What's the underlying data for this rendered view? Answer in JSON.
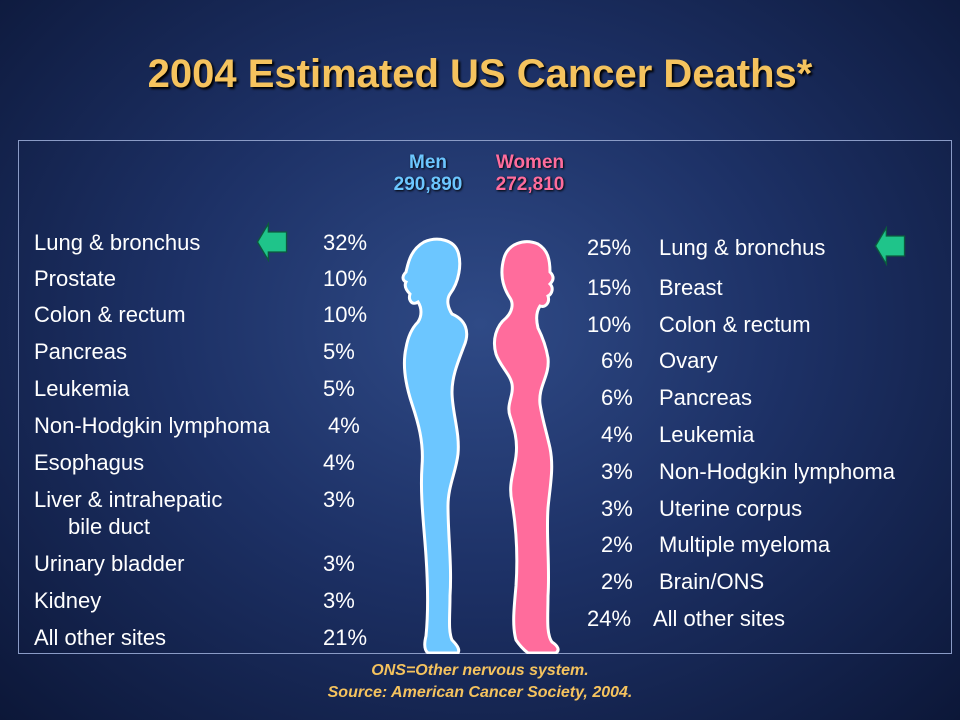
{
  "title": "2004 Estimated US Cancer Deaths*",
  "men": {
    "label": "Men",
    "total": "290,890"
  },
  "women": {
    "label": "Women",
    "total": "272,810"
  },
  "men_sites": [
    {
      "site": "Lung & bronchus",
      "pct": "32%",
      "highlight": true
    },
    {
      "site": "Prostate",
      "pct": "10%"
    },
    {
      "site": "Colon & rectum",
      "pct": "10%"
    },
    {
      "site": "Pancreas",
      "pct": "5%"
    },
    {
      "site": "Leukemia",
      "pct": "5%"
    },
    {
      "site": "Non-Hodgkin lymphoma",
      "pct": "4%"
    },
    {
      "site": "Esophagus",
      "pct": "4%"
    },
    {
      "site": "Liver & intrahepatic",
      "site_line2": "bile duct",
      "pct": "3%"
    },
    {
      "site": "Urinary bladder",
      "pct": "3%"
    },
    {
      "site": "Kidney",
      "pct": "3%"
    },
    {
      "site": "All other sites",
      "pct": "21%"
    }
  ],
  "women_sites": [
    {
      "pct": "25%",
      "site": "Lung & bronchus",
      "highlight": true
    },
    {
      "pct": "15%",
      "site": "Breast"
    },
    {
      "pct": "10%",
      "site": "Colon & rectum"
    },
    {
      "pct": "6%",
      "site": "Ovary"
    },
    {
      "pct": "6%",
      "site": "Pancreas"
    },
    {
      "pct": "4%",
      "site": "Leukemia"
    },
    {
      "pct": "3%",
      "site": "Non-Hodgkin lymphoma"
    },
    {
      "pct": "3%",
      "site": "Uterine corpus"
    },
    {
      "pct": "2%",
      "site": "Multiple myeloma"
    },
    {
      "pct": "2%",
      "site": "Brain/ONS"
    },
    {
      "pct": "24%",
      "site": "All other sites"
    }
  ],
  "footer": {
    "line1": "ONS=Other nervous system.",
    "line2": "Source: American Cancer Society, 2004."
  },
  "colors": {
    "title": "#f5c35e",
    "men": "#6cc6ff",
    "women": "#ff6c9c",
    "arrow": "#1fc48a"
  },
  "icons": {
    "highlight_arrow": "green-left-arrow-icon",
    "men_figure": "male-silhouette-icon",
    "women_figure": "female-silhouette-icon"
  }
}
